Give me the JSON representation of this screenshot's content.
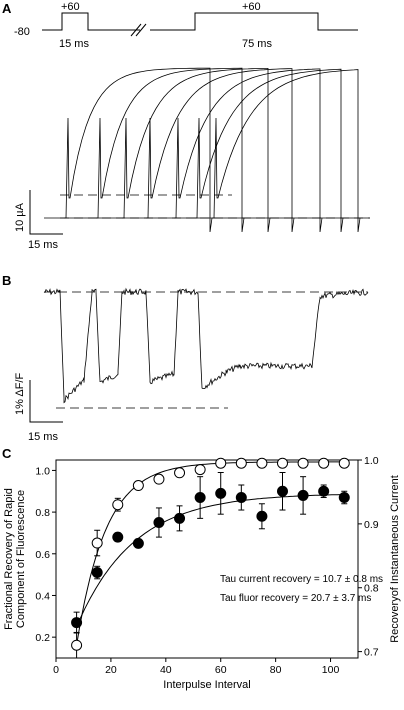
{
  "panel_a": {
    "letter": "A",
    "protocol": {
      "holding": "-80",
      "step1_voltage": "+60",
      "step1_duration": "15 ms",
      "step2_voltage": "+60",
      "step2_duration": "75 ms"
    },
    "scale_current": "10 µA",
    "scale_time": "15 ms"
  },
  "panel_b": {
    "letter": "B",
    "scale_fluor": "1% ΔF/F",
    "scale_time": "15 ms"
  },
  "panel_c": {
    "letter": "C"
  },
  "chart_data": {
    "type": "scatter",
    "xlabel": "Interpulse Interval",
    "ylabel_left": "Fractional Recovery of Rapid\nComponent of Fluorescence",
    "ylabel_right": "Recoveryof Instantaneous Current",
    "xlim": [
      0,
      110
    ],
    "ylim_left": [
      0.1,
      1.05
    ],
    "ylim_right": [
      0.69,
      1.0
    ],
    "x_ticks": [
      0,
      20,
      40,
      60,
      80,
      100
    ],
    "y_ticks_left": [
      0.2,
      0.4,
      0.6,
      0.8,
      1.0
    ],
    "y_ticks_right": [
      0.7,
      0.8,
      0.9,
      1.0
    ],
    "series": [
      {
        "marker": "filled",
        "axis": "left",
        "x": [
          7.5,
          15,
          22.5,
          30,
          37.5,
          45,
          52.5,
          60,
          67.5,
          75,
          82.5,
          90,
          97.5,
          105
        ],
        "y": [
          0.27,
          0.51,
          0.68,
          0.65,
          0.75,
          0.77,
          0.87,
          0.89,
          0.87,
          0.78,
          0.9,
          0.88,
          0.9,
          0.87
        ],
        "err": [
          0.05,
          0.03,
          0.02,
          0.02,
          0.07,
          0.06,
          0.1,
          0.1,
          0.06,
          0.06,
          0.09,
          0.09,
          0.03,
          0.03
        ]
      },
      {
        "marker": "open",
        "axis": "right",
        "x": [
          7.5,
          15,
          22.5,
          30,
          37.5,
          45,
          52.5,
          60,
          67.5,
          75,
          82.5,
          90,
          97.5,
          105
        ],
        "y": [
          0.71,
          0.87,
          0.93,
          0.96,
          0.97,
          0.98,
          0.985,
          0.995,
          0.995,
          0.995,
          0.995,
          0.995,
          0.995,
          0.995
        ],
        "err": [
          0.02,
          0.02,
          0.01,
          0.0,
          0.0,
          0.0,
          0.0,
          0.0,
          0.0,
          0.0,
          0.0,
          0.0,
          0.0,
          0.0
        ]
      }
    ],
    "annotations": [
      "Tau current recovery = 10.7 ± 0.8 ms",
      "Tau fluor recovery = 20.7 ± 3.7 ms"
    ]
  }
}
